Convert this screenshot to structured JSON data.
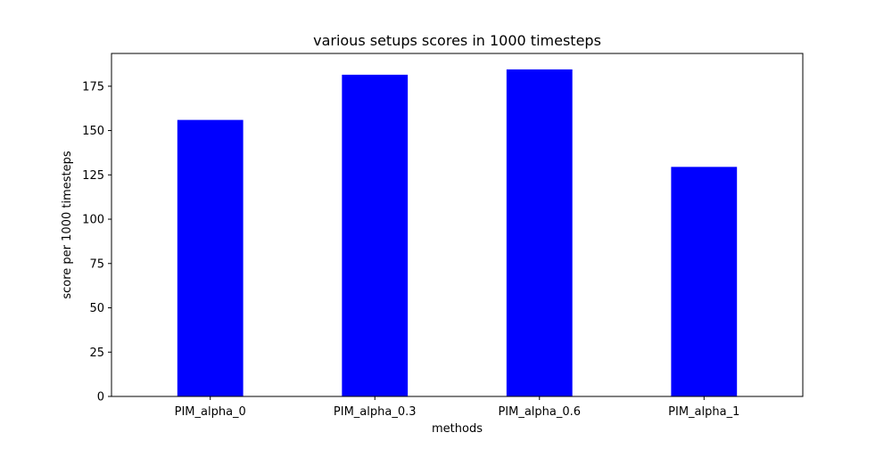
{
  "chart_data": {
    "type": "bar",
    "title": "various setups scores in 1000 timesteps",
    "xlabel": "methods",
    "ylabel": "score per 1000 timesteps",
    "categories": [
      "PIM_alpha_0",
      "PIM_alpha_0.3",
      "PIM_alpha_0.6",
      "PIM_alpha_1"
    ],
    "values": [
      156,
      181.5,
      184.5,
      129.5
    ],
    "ylim": [
      0,
      193.5
    ],
    "yticks": [
      0,
      25,
      50,
      75,
      100,
      125,
      150,
      175
    ],
    "grid": false,
    "bar_color": "#0000ff"
  }
}
